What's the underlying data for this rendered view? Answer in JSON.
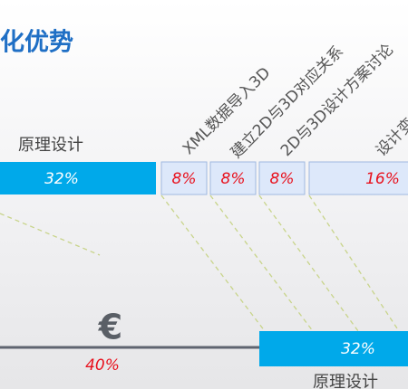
{
  "header": {
    "title": "化优势"
  },
  "top_row": {
    "label": "原理设计",
    "segments": [
      "32%",
      "8%",
      "8%",
      "8%",
      "16%"
    ]
  },
  "steps": [
    "XML数据导入3D",
    "建立2D与3D对应关系",
    "2D与3D设计方案讨论",
    "设计变"
  ],
  "bottom_row": {
    "symbol": "€",
    "left_value": "40%",
    "right_value": "32%",
    "label": "原理设计"
  }
}
